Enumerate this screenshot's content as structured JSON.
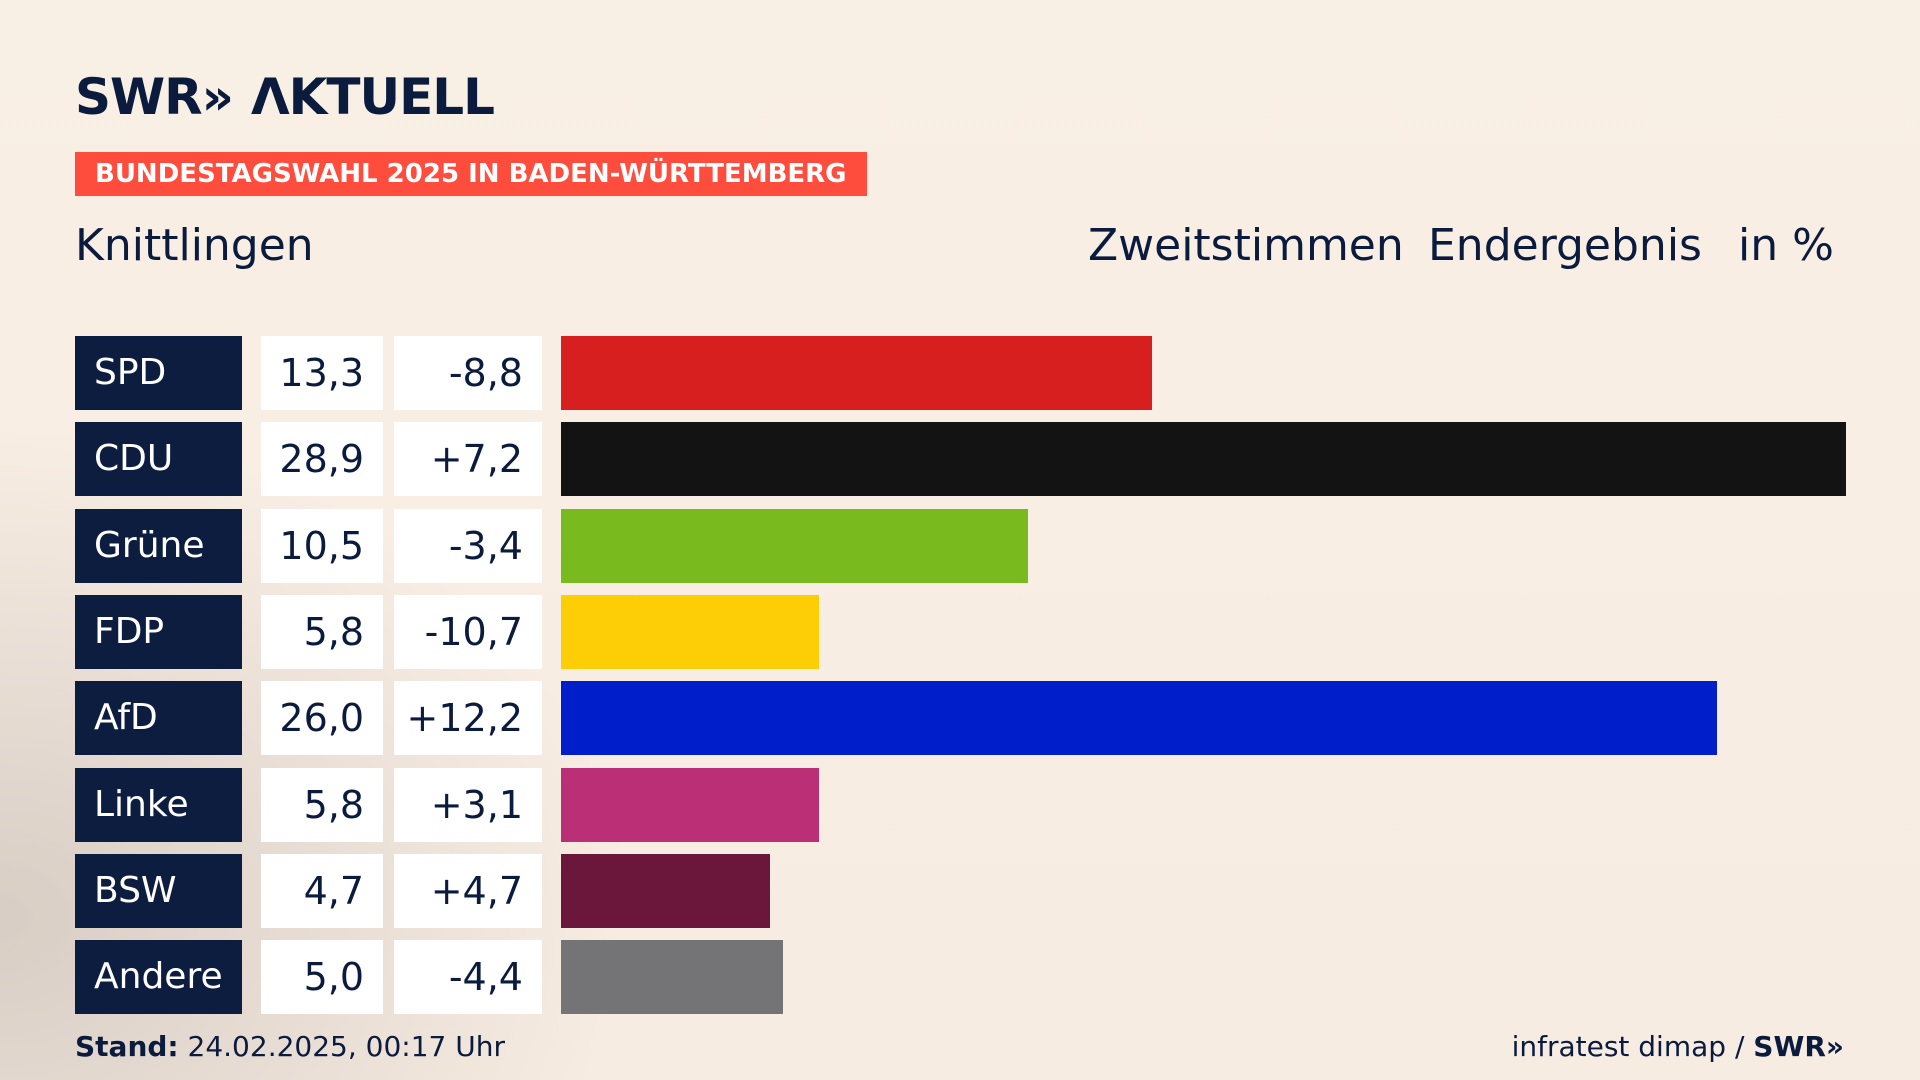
{
  "header": {
    "logo_text": "SWR»",
    "logo_sub": "ΛKTUELL",
    "topic": "BUNDESTAGSWAHL 2025 IN BADEN-WÜRTTEMBERG",
    "place": "Knittlingen",
    "label_vote": "Zweitstimmen",
    "label_status": "Endergebnis",
    "label_unit": "in %"
  },
  "chart_data": {
    "type": "bar",
    "categories": [
      "SPD",
      "CDU",
      "Grüne",
      "FDP",
      "AfD",
      "Linke",
      "BSW",
      "Andere"
    ],
    "values": [
      13.3,
      28.9,
      10.5,
      5.8,
      26.0,
      5.8,
      4.7,
      5.0
    ],
    "value_labels": [
      "13,3",
      "28,9",
      "10,5",
      "5,8",
      "26,0",
      "5,8",
      "4,7",
      "5,0"
    ],
    "changes": [
      -8.8,
      7.2,
      -3.4,
      -10.7,
      12.2,
      3.1,
      4.7,
      -4.4
    ],
    "change_labels": [
      "-8,8",
      "+7,2",
      "-3,4",
      "-10,7",
      "+12,2",
      "+3,1",
      "+4,7",
      "-4,4"
    ],
    "colors": [
      "#d81f1f",
      "#131313",
      "#79bb1f",
      "#fdcd05",
      "#001fca",
      "#bb2f76",
      "#6b173b",
      "#747476"
    ],
    "xlim": [
      0,
      28.9
    ]
  },
  "footer": {
    "stand_label": "Stand:",
    "stand_value": "24.02.2025, 00:17 Uhr",
    "source": "infratest dimap /",
    "source_brand": "SWR»"
  }
}
